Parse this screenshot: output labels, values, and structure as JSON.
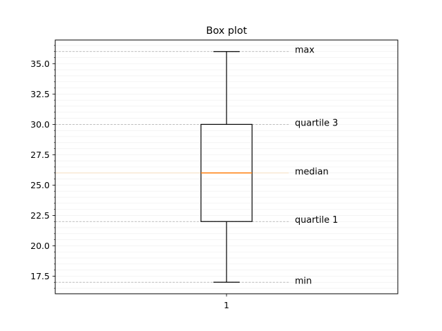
{
  "chart_data": {
    "type": "box",
    "title": "Box plot",
    "xlabel": "",
    "ylabel": "",
    "categories": [
      "1"
    ],
    "box": {
      "min": 17.0,
      "q1": 22.0,
      "median": 26.0,
      "q3": 30.0,
      "max": 36.0
    },
    "ylim": [
      16.05,
      36.95
    ],
    "yticks": [
      {
        "value": 17.5,
        "label": "17.5"
      },
      {
        "value": 20.0,
        "label": "20.0"
      },
      {
        "value": 22.5,
        "label": "22.5"
      },
      {
        "value": 25.0,
        "label": "25.0"
      },
      {
        "value": 27.5,
        "label": "27.5"
      },
      {
        "value": 30.0,
        "label": "30.0"
      },
      {
        "value": 32.5,
        "label": "32.5"
      },
      {
        "value": 35.0,
        "label": "35.0"
      }
    ],
    "minor_tick_step": 0.5,
    "grid": true,
    "annotations": [
      {
        "text": "max",
        "value": 36.0
      },
      {
        "text": "quartile 3",
        "value": 30.0
      },
      {
        "text": "median",
        "value": 26.0
      },
      {
        "text": "quartile 1",
        "value": 22.0
      },
      {
        "text": "min",
        "value": 17.0
      }
    ],
    "colors": {
      "box": "#000000",
      "median": "#ff7f0e",
      "guide": "#aaaaaa",
      "grid": "#eeeeee"
    }
  }
}
